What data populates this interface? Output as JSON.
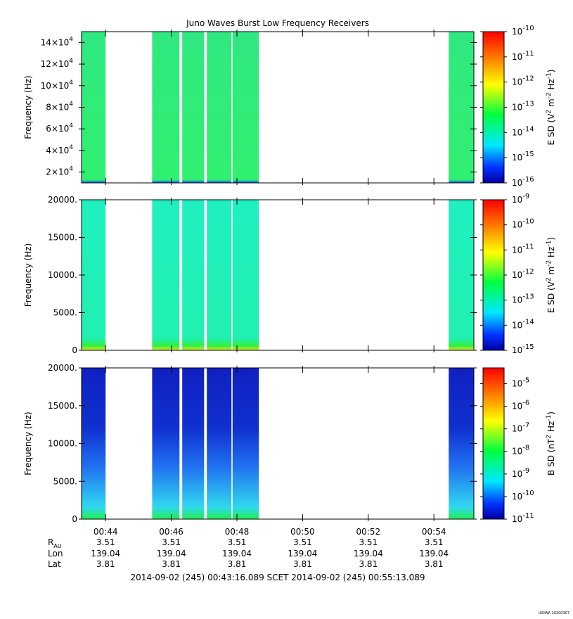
{
  "title": "Juno Waves Burst Low Frequency Receivers",
  "stamp": "UIOWA 20200307",
  "chart_data": [
    {
      "type": "heatmap",
      "name": "spectrogram-panel-1",
      "ylabel": "Frequency (Hz)",
      "ylim": [
        10000,
        150000
      ],
      "ytick_labels": [
        {
          "value": 20000,
          "mant": "2×10",
          "exp": "4"
        },
        {
          "value": 40000,
          "mant": "4×10",
          "exp": "4"
        },
        {
          "value": 60000,
          "mant": "6×10",
          "exp": "4"
        },
        {
          "value": 80000,
          "mant": "8×10",
          "exp": "4"
        },
        {
          "value": 100000,
          "mant": "10×10",
          "exp": "4"
        },
        {
          "value": 120000,
          "mant": "12×10",
          "exp": "4"
        },
        {
          "value": 140000,
          "mant": "14×10",
          "exp": "4"
        }
      ],
      "data_spans": [
        [
          "00:43:16",
          "00:44:00"
        ],
        [
          "00:45:25",
          "00:46:15"
        ],
        [
          "00:46:20",
          "00:47:00"
        ],
        [
          "00:47:05",
          "00:47:50"
        ],
        [
          "00:47:52",
          "00:48:40"
        ],
        [
          "00:54:27",
          "00:55:13"
        ]
      ],
      "colorbar": {
        "label_main": "E SD (V",
        "label_mid": " m",
        "label_end": " Hz",
        "label_close": ")",
        "sup1": "2",
        "sup2": "-2",
        "sup3": "-1",
        "range_exp": [
          -16,
          -10
        ],
        "ticks": [
          {
            "m": "10",
            "e": "-10"
          },
          {
            "m": "10",
            "e": "-11"
          },
          {
            "m": "10",
            "e": "-12"
          },
          {
            "m": "10",
            "e": "-13"
          },
          {
            "m": "10",
            "e": "-14"
          },
          {
            "m": "10",
            "e": "-15"
          },
          {
            "m": "10",
            "e": "-16"
          }
        ]
      },
      "data_colors": {
        "low": "#1050ff",
        "mid": "#30f070",
        "high": "#30e880"
      }
    },
    {
      "type": "heatmap",
      "name": "spectrogram-panel-2",
      "ylabel": "Frequency (Hz)",
      "ylim": [
        0,
        20000
      ],
      "ytick_labels": [
        {
          "value": 0,
          "text": "0"
        },
        {
          "value": 5000,
          "text": "5000."
        },
        {
          "value": 10000,
          "text": "10000."
        },
        {
          "value": 15000,
          "text": "15000."
        },
        {
          "value": 20000,
          "text": "20000."
        }
      ],
      "data_spans": [
        [
          "00:43:16",
          "00:44:00"
        ],
        [
          "00:45:25",
          "00:46:15"
        ],
        [
          "00:46:20",
          "00:47:00"
        ],
        [
          "00:47:05",
          "00:47:50"
        ],
        [
          "00:47:52",
          "00:48:40"
        ],
        [
          "00:54:27",
          "00:55:13"
        ]
      ],
      "colorbar": {
        "label_main": "E SD (V",
        "label_mid": " m",
        "label_end": " Hz",
        "label_close": ")",
        "sup1": "2",
        "sup2": "-2",
        "sup3": "-1",
        "range_exp": [
          -15,
          -9
        ],
        "ticks": [
          {
            "m": "10",
            "e": "-9"
          },
          {
            "m": "10",
            "e": "-10"
          },
          {
            "m": "10",
            "e": "-11"
          },
          {
            "m": "10",
            "e": "-12"
          },
          {
            "m": "10",
            "e": "-13"
          },
          {
            "m": "10",
            "e": "-14"
          },
          {
            "m": "10",
            "e": "-15"
          }
        ]
      },
      "data_colors": {
        "low": "#e0e820",
        "mid": "#20f0b0",
        "high": "#20f0c0"
      }
    },
    {
      "type": "heatmap",
      "name": "spectrogram-panel-3",
      "ylabel": "Frequency (Hz)",
      "ylim": [
        0,
        20000
      ],
      "ytick_labels": [
        {
          "value": 0,
          "text": "0"
        },
        {
          "value": 5000,
          "text": "5000."
        },
        {
          "value": 10000,
          "text": "10000."
        },
        {
          "value": 15000,
          "text": "15000."
        },
        {
          "value": 20000,
          "text": "20000."
        }
      ],
      "data_spans": [
        [
          "00:43:16",
          "00:44:00"
        ],
        [
          "00:45:25",
          "00:46:15"
        ],
        [
          "00:46:20",
          "00:47:00"
        ],
        [
          "00:47:05",
          "00:47:50"
        ],
        [
          "00:47:52",
          "00:48:40"
        ],
        [
          "00:54:27",
          "00:55:13"
        ]
      ],
      "colorbar": {
        "label_main": "B SD (nT",
        "label_mid": " Hz",
        "label_close": ")",
        "sup1": "2",
        "sup2": "-1",
        "range_exp": [
          -11,
          -4.3
        ],
        "ticks": [
          {
            "m": "10",
            "e": "-5"
          },
          {
            "m": "10",
            "e": "-6"
          },
          {
            "m": "10",
            "e": "-7"
          },
          {
            "m": "10",
            "e": "-8"
          },
          {
            "m": "10",
            "e": "-9"
          },
          {
            "m": "10",
            "e": "-10"
          },
          {
            "m": "10",
            "e": "-11"
          }
        ]
      },
      "data_colors": {
        "low": "#20f050",
        "mid": "#30d8f0",
        "high": "#1030d0"
      }
    }
  ],
  "x_axis": {
    "range": [
      "00:43:16",
      "00:55:13"
    ],
    "ticks": [
      "00:44",
      "00:46",
      "00:48",
      "00:50",
      "00:52",
      "00:54"
    ]
  },
  "ephemeris": {
    "rows": [
      {
        "label": "R",
        "sub": "AU",
        "values": [
          "3.51",
          "3.51",
          "3.51",
          "3.51",
          "3.51",
          "3.51"
        ]
      },
      {
        "label": "Lon",
        "values": [
          "139.04",
          "139.04",
          "139.04",
          "139.04",
          "139.04",
          "139.04"
        ]
      },
      {
        "label": "Lat",
        "values": [
          "3.81",
          "3.81",
          "3.81",
          "3.81",
          "3.81",
          "3.81"
        ]
      }
    ]
  },
  "time_range_text": "2014-09-02 (245) 00:43:16.089    SCET    2014-09-02 (245) 00:55:13.089"
}
